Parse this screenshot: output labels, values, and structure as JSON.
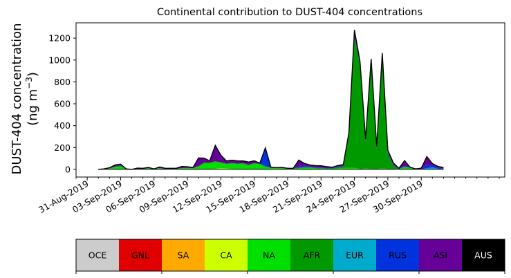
{
  "chart_data": {
    "type": "area",
    "title": "Continental contribution to DUST-404 concentrations",
    "ylabel_line1": "DUST-404 concentration",
    "ylabel_line2_prefix": "(ng m",
    "ylabel_line2_sup": "−3",
    "ylabel_line2_suffix": ")",
    "ylim": [
      -70,
      1340
    ],
    "yticks": [
      0,
      200,
      400,
      600,
      800,
      1000,
      1200
    ],
    "x_unit": "days after 31-Aug-2019 00:00",
    "xlim": [
      -1.0,
      37.5
    ],
    "xticks": [
      {
        "x": 0,
        "label": "31-Aug-2019"
      },
      {
        "x": 3,
        "label": "03-Sep-2019"
      },
      {
        "x": 6,
        "label": "06-Sep-2019"
      },
      {
        "x": 9,
        "label": "09-Sep-2019"
      },
      {
        "x": 12,
        "label": "12-Sep-2019"
      },
      {
        "x": 15,
        "label": "15-Sep-2019"
      },
      {
        "x": 18,
        "label": "18-Sep-2019"
      },
      {
        "x": 21,
        "label": "21-Sep-2019"
      },
      {
        "x": 24,
        "label": "24-Sep-2019"
      },
      {
        "x": 27,
        "label": "27-Sep-2019"
      },
      {
        "x": 30,
        "label": "30-Sep-2019"
      }
    ],
    "x": [
      1.0,
      1.5,
      2.0,
      2.5,
      3.0,
      3.5,
      4.0,
      4.5,
      5.0,
      5.5,
      6.0,
      6.5,
      7.0,
      7.5,
      8.0,
      8.5,
      9.0,
      9.5,
      10.0,
      10.5,
      11.0,
      11.5,
      12.0,
      12.5,
      13.0,
      13.5,
      14.0,
      14.5,
      15.0,
      15.5,
      16.0,
      16.5,
      17.0,
      17.5,
      18.0,
      18.5,
      19.0,
      19.5,
      20.0,
      20.5,
      21.0,
      21.5,
      22.0,
      22.5,
      23.0,
      23.5,
      24.0,
      24.5,
      25.0,
      25.5,
      26.0,
      26.5,
      27.0,
      27.5,
      28.0,
      28.5,
      29.0,
      29.5,
      30.0,
      30.5,
      31.0,
      31.5,
      32.0
    ],
    "legend": [
      "OCE",
      "GNL",
      "SA",
      "CA",
      "NA",
      "AFR",
      "EUR",
      "RUS",
      "ASI",
      "AUS"
    ],
    "colors": {
      "OCE": "#cccccc",
      "GNL": "#e00000",
      "SA": "#ffaa00",
      "CA": "#ccff00",
      "NA": "#00e000",
      "AFR": "#009900",
      "EUR": "#00aacc",
      "RUS": "#0033dd",
      "ASI": "#660099",
      "AUS": "#000000"
    },
    "series": [
      {
        "name": "OCE",
        "values": [
          0,
          0,
          0,
          0,
          0,
          0,
          0,
          0,
          0,
          0,
          0,
          0,
          0,
          0,
          0,
          0,
          0,
          0,
          0,
          0,
          0,
          0,
          0,
          0,
          0,
          0,
          0,
          0,
          0,
          0,
          0,
          0,
          0,
          0,
          0,
          0,
          0,
          0,
          0,
          0,
          0,
          0,
          0,
          0,
          0,
          0,
          0,
          0,
          0,
          0,
          0,
          0,
          0,
          0,
          0,
          0,
          0,
          0,
          0,
          0,
          0,
          0,
          0
        ]
      },
      {
        "name": "GNL",
        "values": [
          0,
          0,
          0,
          0,
          0,
          0,
          0,
          0,
          0,
          0,
          0,
          0,
          0,
          0,
          0,
          0,
          0,
          0,
          0,
          0,
          0,
          0,
          0,
          0,
          0,
          0,
          0,
          0,
          0,
          0,
          0,
          2,
          4,
          2,
          0,
          0,
          0,
          0,
          0,
          0,
          0,
          0,
          0,
          0,
          0,
          0,
          0,
          0,
          0,
          0,
          0,
          0,
          0,
          0,
          0,
          0,
          0,
          0,
          0,
          0,
          0,
          0,
          0
        ]
      },
      {
        "name": "SA",
        "values": [
          0,
          0,
          0,
          0,
          0,
          0,
          0,
          0,
          0,
          0,
          0,
          0,
          0,
          0,
          0,
          0,
          0,
          0,
          0,
          0,
          0,
          0,
          0,
          0,
          0,
          0,
          0,
          0,
          0,
          0,
          0,
          0,
          0,
          0,
          0,
          0,
          0,
          0,
          0,
          0,
          0,
          0,
          0,
          0,
          0,
          0,
          0,
          0,
          0,
          0,
          0,
          0,
          0,
          0,
          0,
          5,
          0,
          0,
          0,
          0,
          0,
          0,
          0
        ]
      },
      {
        "name": "CA",
        "values": [
          0,
          0,
          0,
          0,
          0,
          0,
          0,
          0,
          0,
          0,
          0,
          0,
          0,
          0,
          0,
          0,
          0,
          0,
          0,
          0,
          0,
          5,
          10,
          8,
          4,
          3,
          2,
          2,
          2,
          2,
          2,
          2,
          2,
          0,
          0,
          0,
          0,
          0,
          0,
          0,
          0,
          0,
          0,
          0,
          0,
          0,
          0,
          0,
          0,
          0,
          0,
          0,
          0,
          0,
          0,
          0,
          0,
          0,
          0,
          0,
          0,
          0,
          0
        ]
      },
      {
        "name": "NA",
        "values": [
          0,
          5,
          10,
          20,
          25,
          5,
          0,
          5,
          5,
          10,
          5,
          10,
          5,
          5,
          5,
          10,
          12,
          10,
          25,
          55,
          55,
          65,
          50,
          40,
          50,
          45,
          50,
          35,
          50,
          45,
          20,
          10,
          5,
          10,
          5,
          5,
          10,
          15,
          15,
          10,
          8,
          5,
          5,
          10,
          12,
          15,
          15,
          5,
          8,
          5,
          6,
          8,
          6,
          3,
          5,
          15,
          15,
          0,
          2,
          2,
          3,
          2,
          2
        ]
      },
      {
        "name": "AFR",
        "values": [
          0,
          0,
          0,
          5,
          8,
          0,
          0,
          0,
          0,
          2,
          0,
          2,
          0,
          0,
          0,
          2,
          2,
          2,
          5,
          8,
          8,
          5,
          5,
          5,
          5,
          5,
          5,
          5,
          5,
          5,
          5,
          5,
          5,
          5,
          5,
          5,
          5,
          5,
          5,
          5,
          5,
          5,
          5,
          10,
          12,
          300,
          1200,
          940,
          240,
          960,
          170,
          1010,
          140,
          30,
          0,
          5,
          0,
          0,
          0,
          0,
          0,
          0,
          0
        ]
      },
      {
        "name": "EUR",
        "values": [
          0,
          0,
          0,
          0,
          0,
          0,
          0,
          0,
          0,
          0,
          0,
          0,
          0,
          0,
          0,
          0,
          0,
          0,
          0,
          0,
          0,
          0,
          0,
          0,
          0,
          0,
          0,
          0,
          0,
          0,
          0,
          0,
          0,
          0,
          0,
          0,
          0,
          0,
          0,
          0,
          0,
          0,
          0,
          0,
          0,
          0,
          0,
          0,
          0,
          0,
          0,
          0,
          0,
          0,
          0,
          0,
          0,
          0,
          0,
          10,
          15,
          5,
          0
        ]
      },
      {
        "name": "RUS",
        "values": [
          0,
          0,
          0,
          0,
          5,
          0,
          0,
          2,
          0,
          0,
          0,
          0,
          0,
          0,
          0,
          0,
          0,
          0,
          0,
          0,
          0,
          0,
          0,
          0,
          0,
          0,
          0,
          0,
          2,
          5,
          160,
          0,
          0,
          0,
          0,
          0,
          10,
          15,
          5,
          5,
          5,
          5,
          5,
          5,
          5,
          5,
          5,
          5,
          5,
          5,
          5,
          5,
          5,
          5,
          5,
          5,
          5,
          5,
          5,
          30,
          15,
          10,
          5
        ]
      },
      {
        "name": "ASI",
        "values": [
          0,
          0,
          5,
          15,
          10,
          0,
          0,
          5,
          5,
          5,
          0,
          10,
          5,
          5,
          5,
          15,
          10,
          5,
          75,
          40,
          15,
          145,
          65,
          25,
          25,
          25,
          20,
          25,
          20,
          0,
          10,
          0,
          0,
          0,
          0,
          0,
          60,
          20,
          15,
          15,
          15,
          10,
          5,
          10,
          15,
          15,
          40,
          20,
          15,
          30,
          20,
          30,
          15,
          15,
          0,
          50,
          0,
          0,
          5,
          75,
          20,
          10,
          10
        ]
      },
      {
        "name": "AUS",
        "values": [
          0,
          0,
          0,
          0,
          0,
          0,
          0,
          0,
          0,
          0,
          0,
          0,
          0,
          0,
          0,
          0,
          0,
          0,
          0,
          0,
          0,
          0,
          0,
          0,
          0,
          0,
          0,
          0,
          0,
          0,
          0,
          0,
          0,
          0,
          0,
          0,
          0,
          0,
          0,
          0,
          0,
          0,
          0,
          0,
          0,
          0,
          15,
          15,
          10,
          10,
          10,
          10,
          10,
          5,
          0,
          0,
          0,
          0,
          0,
          0,
          0,
          0,
          0
        ]
      }
    ]
  }
}
